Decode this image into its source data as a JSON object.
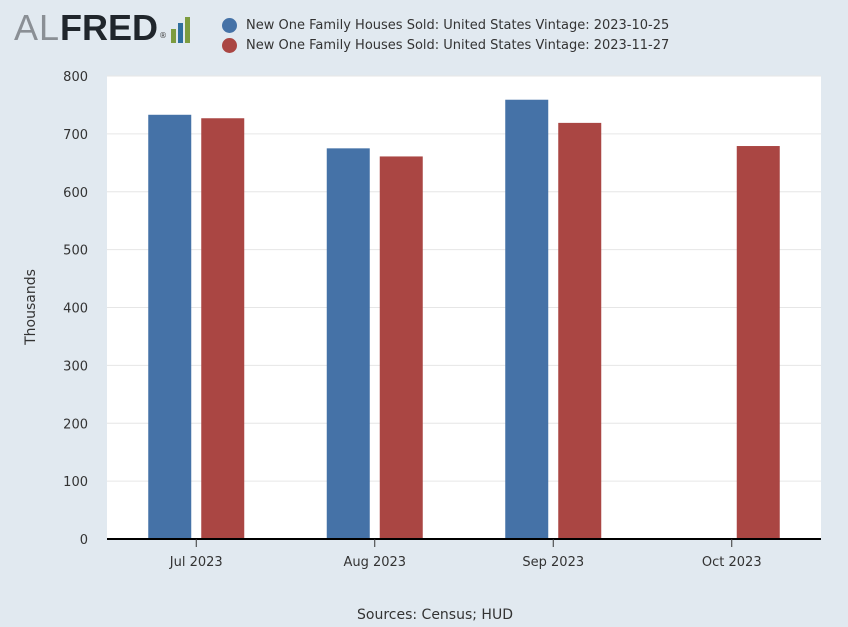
{
  "logo": {
    "part1": "AL",
    "part2": "FRED",
    "reg": "®"
  },
  "colors": {
    "series1": "#4572a7",
    "series2": "#aa4643",
    "background": "#e1e9f0",
    "plot": "#ffffff",
    "grid": "#e6e6e6",
    "axis": "#000000"
  },
  "chart_data": {
    "type": "bar",
    "categories": [
      "Jul 2023",
      "Aug 2023",
      "Sep 2023",
      "Oct 2023"
    ],
    "series": [
      {
        "name": "New One Family Houses Sold: United States Vintage: 2023-10-25",
        "values": [
          733,
          675,
          759,
          null
        ]
      },
      {
        "name": "New One Family Houses Sold: United States Vintage: 2023-11-27",
        "values": [
          727,
          661,
          719,
          679
        ]
      }
    ],
    "ylabel": "Thousands",
    "ylim": [
      0,
      800
    ],
    "yticks": [
      0,
      100,
      200,
      300,
      400,
      500,
      600,
      700,
      800
    ],
    "grid": true,
    "legend": "top"
  },
  "source": "Sources: Census; HUD"
}
